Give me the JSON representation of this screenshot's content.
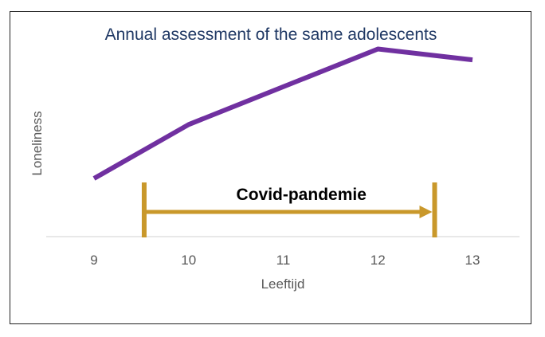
{
  "chart_data": {
    "type": "line",
    "title": "Annual assessment of the same adolescents",
    "xlabel": "Leeftijd",
    "ylabel": "Loneliness",
    "x": [
      9,
      10,
      11,
      12,
      13
    ],
    "categories": [
      "9",
      "10",
      "11",
      "12",
      "13"
    ],
    "series": [
      {
        "name": "Loneliness",
        "values": [
          1.05,
          2.05,
          2.75,
          3.45,
          3.25
        ]
      }
    ],
    "ylim": [
      -1,
      4
    ],
    "grid": false,
    "annotation": {
      "label": "Covid-pandemie",
      "x_start": 9.53,
      "x_end": 12.6
    },
    "colors": {
      "line": "#7030a0",
      "annotation": "#c9982b",
      "title": "#1f3864",
      "axis": "#d9d9d9",
      "text": "#595959",
      "annotation_text": "#000000"
    }
  }
}
